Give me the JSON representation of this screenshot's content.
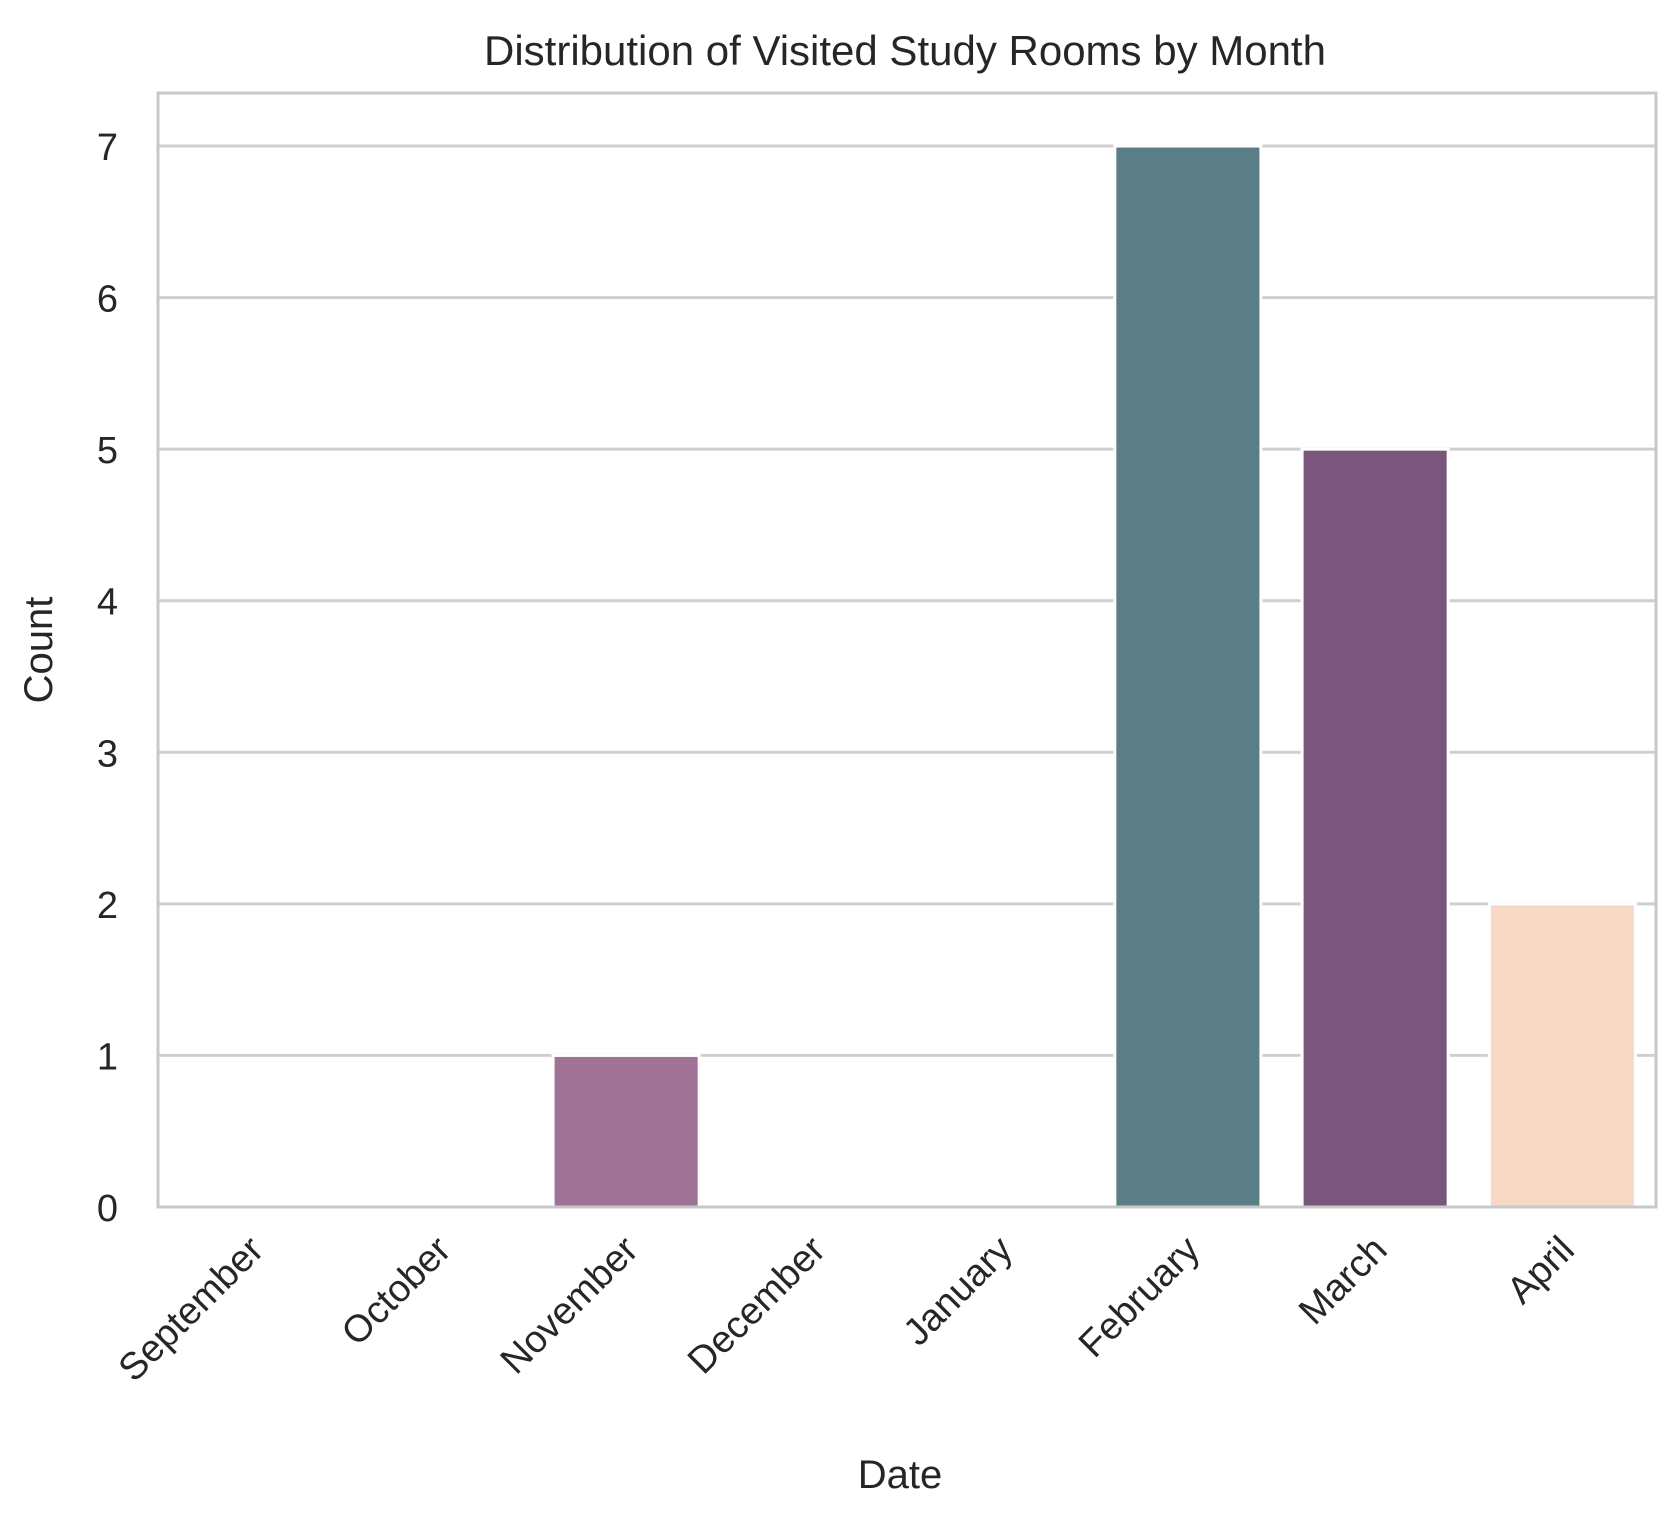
{
  "chart_data": {
    "type": "bar",
    "title": "Distribution of Visited Study Rooms by Month",
    "xlabel": "Date",
    "ylabel": "Count",
    "categories": [
      "September",
      "October",
      "November",
      "December",
      "January",
      "February",
      "March",
      "April"
    ],
    "values": [
      0,
      0,
      1,
      0,
      0,
      7,
      5,
      2
    ],
    "bar_colors": [
      "#a07295",
      "#a07295",
      "#a07295",
      "#a07295",
      "#a07295",
      "#5b7e86",
      "#7a557c",
      "#f6d8c3"
    ],
    "ylim": [
      0,
      7.35
    ],
    "yticks": [
      0,
      1,
      2,
      3,
      4,
      5,
      6,
      7
    ],
    "grid": true,
    "legend": "none"
  }
}
